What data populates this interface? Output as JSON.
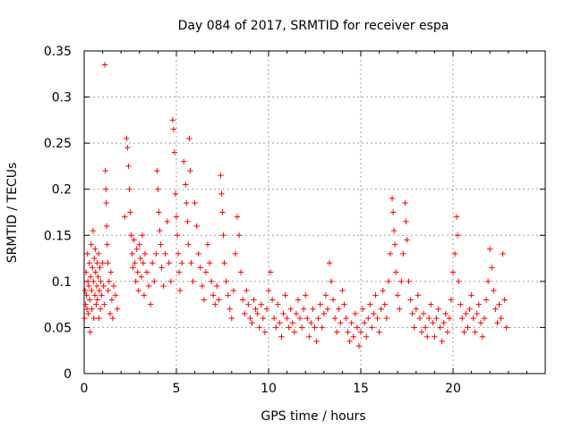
{
  "chart_data": {
    "type": "scatter",
    "title": "Day 084 of 2017, SRMTID for receiver espa",
    "xlabel": "GPS time / hours",
    "ylabel": "SRMTID / TECUs",
    "xlim": [
      0,
      25
    ],
    "ylim": [
      0,
      0.35
    ],
    "grid": true,
    "marker": "+",
    "color": "#ff0000",
    "x_ticks": [
      0,
      5,
      10,
      15,
      20
    ],
    "x_tick_labels": [
      "0",
      "5",
      "10",
      "15",
      "20"
    ],
    "y_ticks": [
      0,
      0.05,
      0.1,
      0.15,
      0.2,
      0.25,
      0.3,
      0.35
    ],
    "y_tick_labels": [
      "0",
      "0.05",
      "0.1",
      "0.15",
      "0.2",
      "0.25",
      "0.3",
      "0.35"
    ],
    "series": [
      {
        "name": "SRMTID",
        "points": [
          [
            0.02,
            0.06
          ],
          [
            0.05,
            0.09
          ],
          [
            0.08,
            0.075
          ],
          [
            0.1,
            0.11
          ],
          [
            0.12,
            0.085
          ],
          [
            0.15,
            0.07
          ],
          [
            0.18,
            0.13
          ],
          [
            0.2,
            0.1
          ],
          [
            0.22,
            0.065
          ],
          [
            0.25,
            0.095
          ],
          [
            0.28,
            0.12
          ],
          [
            0.3,
            0.08
          ],
          [
            0.32,
            0.045
          ],
          [
            0.35,
            0.105
          ],
          [
            0.38,
            0.14
          ],
          [
            0.4,
            0.09
          ],
          [
            0.42,
            0.07
          ],
          [
            0.45,
            0.115
          ],
          [
            0.48,
            0.155
          ],
          [
            0.5,
            0.1
          ],
          [
            0.52,
            0.06
          ],
          [
            0.55,
            0.125
          ],
          [
            0.58,
            0.085
          ],
          [
            0.6,
            0.135
          ],
          [
            0.62,
            0.11
          ],
          [
            0.65,
            0.075
          ],
          [
            0.68,
            0.095
          ],
          [
            0.7,
            0.12
          ],
          [
            0.72,
            0.08
          ],
          [
            0.75,
            0.105
          ],
          [
            0.78,
            0.13
          ],
          [
            0.8,
            0.06
          ],
          [
            0.82,
            0.09
          ],
          [
            0.85,
            0.115
          ],
          [
            0.88,
            0.07
          ],
          [
            0.9,
            0.1
          ],
          [
            0.95,
            0.085
          ],
          [
            1.0,
            0.12
          ],
          [
            1.05,
            0.095
          ],
          [
            1.1,
            0.075
          ],
          [
            1.12,
            0.335
          ],
          [
            1.15,
            0.22
          ],
          [
            1.18,
            0.2
          ],
          [
            1.2,
            0.185
          ],
          [
            1.22,
            0.16
          ],
          [
            1.25,
            0.14
          ],
          [
            1.28,
            0.12
          ],
          [
            1.3,
            0.09
          ],
          [
            1.35,
            0.1
          ],
          [
            1.4,
            0.065
          ],
          [
            1.45,
            0.11
          ],
          [
            1.5,
            0.08
          ],
          [
            1.55,
            0.06
          ],
          [
            1.6,
            0.095
          ],
          [
            1.7,
            0.085
          ],
          [
            1.8,
            0.07
          ],
          [
            2.2,
            0.17
          ],
          [
            2.3,
            0.255
          ],
          [
            2.35,
            0.245
          ],
          [
            2.4,
            0.225
          ],
          [
            2.45,
            0.2
          ],
          [
            2.5,
            0.175
          ],
          [
            2.55,
            0.15
          ],
          [
            2.6,
            0.13
          ],
          [
            2.65,
            0.115
          ],
          [
            2.7,
            0.145
          ],
          [
            2.75,
            0.12
          ],
          [
            2.8,
            0.1
          ],
          [
            2.85,
            0.135
          ],
          [
            2.9,
            0.11
          ],
          [
            2.95,
            0.09
          ],
          [
            3.0,
            0.14
          ],
          [
            3.05,
            0.125
          ],
          [
            3.1,
            0.105
          ],
          [
            3.15,
            0.15
          ],
          [
            3.2,
            0.12
          ],
          [
            3.25,
            0.085
          ],
          [
            3.3,
            0.13
          ],
          [
            3.4,
            0.11
          ],
          [
            3.5,
            0.095
          ],
          [
            3.6,
            0.075
          ],
          [
            3.7,
            0.12
          ],
          [
            3.8,
            0.1
          ],
          [
            3.9,
            0.13
          ],
          [
            3.95,
            0.22
          ],
          [
            4.0,
            0.2
          ],
          [
            4.05,
            0.175
          ],
          [
            4.1,
            0.155
          ],
          [
            4.15,
            0.14
          ],
          [
            4.2,
            0.115
          ],
          [
            4.3,
            0.095
          ],
          [
            4.4,
            0.13
          ],
          [
            4.5,
            0.165
          ],
          [
            4.6,
            0.12
          ],
          [
            4.7,
            0.1
          ],
          [
            4.8,
            0.275
          ],
          [
            4.85,
            0.265
          ],
          [
            4.9,
            0.24
          ],
          [
            4.95,
            0.195
          ],
          [
            5.0,
            0.17
          ],
          [
            5.05,
            0.15
          ],
          [
            5.1,
            0.13
          ],
          [
            5.15,
            0.11
          ],
          [
            5.2,
            0.09
          ],
          [
            5.3,
            0.12
          ],
          [
            5.4,
            0.23
          ],
          [
            5.5,
            0.205
          ],
          [
            5.55,
            0.185
          ],
          [
            5.6,
            0.165
          ],
          [
            5.65,
            0.14
          ],
          [
            5.7,
            0.255
          ],
          [
            5.75,
            0.22
          ],
          [
            5.8,
            0.12
          ],
          [
            5.9,
            0.1
          ],
          [
            6.0,
            0.185
          ],
          [
            6.1,
            0.16
          ],
          [
            6.2,
            0.13
          ],
          [
            6.3,
            0.115
          ],
          [
            6.4,
            0.095
          ],
          [
            6.5,
            0.08
          ],
          [
            6.6,
            0.11
          ],
          [
            6.7,
            0.14
          ],
          [
            6.8,
            0.12
          ],
          [
            6.9,
            0.1
          ],
          [
            7.0,
            0.085
          ],
          [
            7.1,
            0.075
          ],
          [
            7.2,
            0.095
          ],
          [
            7.3,
            0.08
          ],
          [
            7.4,
            0.215
          ],
          [
            7.45,
            0.195
          ],
          [
            7.5,
            0.175
          ],
          [
            7.55,
            0.15
          ],
          [
            7.6,
            0.12
          ],
          [
            7.7,
            0.1
          ],
          [
            7.8,
            0.085
          ],
          [
            7.9,
            0.07
          ],
          [
            8.0,
            0.06
          ],
          [
            8.1,
            0.09
          ],
          [
            8.2,
            0.13
          ],
          [
            8.3,
            0.17
          ],
          [
            8.4,
            0.15
          ],
          [
            8.5,
            0.11
          ],
          [
            8.6,
            0.08
          ],
          [
            8.7,
            0.065
          ],
          [
            8.8,
            0.09
          ],
          [
            8.9,
            0.075
          ],
          [
            9.0,
            0.06
          ],
          [
            9.1,
            0.055
          ],
          [
            9.2,
            0.08
          ],
          [
            9.3,
            0.07
          ],
          [
            9.4,
            0.065
          ],
          [
            9.5,
            0.05
          ],
          [
            9.6,
            0.075
          ],
          [
            9.7,
            0.06
          ],
          [
            9.8,
            0.045
          ],
          [
            9.9,
            0.07
          ],
          [
            10.0,
            0.09
          ],
          [
            10.1,
            0.11
          ],
          [
            10.2,
            0.08
          ],
          [
            10.3,
            0.06
          ],
          [
            10.4,
            0.05
          ],
          [
            10.5,
            0.075
          ],
          [
            10.6,
            0.055
          ],
          [
            10.7,
            0.04
          ],
          [
            10.8,
            0.065
          ],
          [
            10.9,
            0.085
          ],
          [
            11.0,
            0.06
          ],
          [
            11.1,
            0.05
          ],
          [
            11.2,
            0.07
          ],
          [
            11.3,
            0.055
          ],
          [
            11.4,
            0.045
          ],
          [
            11.5,
            0.065
          ],
          [
            11.6,
            0.08
          ],
          [
            11.7,
            0.06
          ],
          [
            11.8,
            0.05
          ],
          [
            11.9,
            0.07
          ],
          [
            12.0,
            0.085
          ],
          [
            12.1,
            0.06
          ],
          [
            12.2,
            0.04
          ],
          [
            12.3,
            0.055
          ],
          [
            12.4,
            0.07
          ],
          [
            12.5,
            0.05
          ],
          [
            12.6,
            0.035
          ],
          [
            12.7,
            0.06
          ],
          [
            12.8,
            0.075
          ],
          [
            12.9,
            0.05
          ],
          [
            13.0,
            0.065
          ],
          [
            13.1,
            0.085
          ],
          [
            13.2,
            0.07
          ],
          [
            13.3,
            0.12
          ],
          [
            13.4,
            0.1
          ],
          [
            13.5,
            0.08
          ],
          [
            13.6,
            0.06
          ],
          [
            13.7,
            0.045
          ],
          [
            13.8,
            0.07
          ],
          [
            13.9,
            0.055
          ],
          [
            14.0,
            0.09
          ],
          [
            14.1,
            0.075
          ],
          [
            14.2,
            0.06
          ],
          [
            14.3,
            0.045
          ],
          [
            14.4,
            0.035
          ],
          [
            14.5,
            0.055
          ],
          [
            14.6,
            0.04
          ],
          [
            14.7,
            0.065
          ],
          [
            14.8,
            0.05
          ],
          [
            14.9,
            0.03
          ],
          [
            15.0,
            0.045
          ],
          [
            15.1,
            0.07
          ],
          [
            15.2,
            0.055
          ],
          [
            15.3,
            0.04
          ],
          [
            15.4,
            0.06
          ],
          [
            15.5,
            0.075
          ],
          [
            15.6,
            0.05
          ],
          [
            15.7,
            0.065
          ],
          [
            15.8,
            0.085
          ],
          [
            15.9,
            0.06
          ],
          [
            16.0,
            0.045
          ],
          [
            16.1,
            0.07
          ],
          [
            16.2,
            0.09
          ],
          [
            16.3,
            0.075
          ],
          [
            16.4,
            0.06
          ],
          [
            16.5,
            0.1
          ],
          [
            16.6,
            0.13
          ],
          [
            16.7,
            0.19
          ],
          [
            16.75,
            0.175
          ],
          [
            16.8,
            0.155
          ],
          [
            16.85,
            0.14
          ],
          [
            16.9,
            0.11
          ],
          [
            17.0,
            0.085
          ],
          [
            17.1,
            0.07
          ],
          [
            17.2,
            0.1
          ],
          [
            17.3,
            0.13
          ],
          [
            17.4,
            0.185
          ],
          [
            17.45,
            0.165
          ],
          [
            17.5,
            0.145
          ],
          [
            17.6,
            0.1
          ],
          [
            17.7,
            0.08
          ],
          [
            17.8,
            0.065
          ],
          [
            17.9,
            0.05
          ],
          [
            18.0,
            0.07
          ],
          [
            18.1,
            0.085
          ],
          [
            18.2,
            0.06
          ],
          [
            18.3,
            0.045
          ],
          [
            18.4,
            0.065
          ],
          [
            18.5,
            0.05
          ],
          [
            18.6,
            0.04
          ],
          [
            18.7,
            0.06
          ],
          [
            18.8,
            0.075
          ],
          [
            18.9,
            0.055
          ],
          [
            19.0,
            0.04
          ],
          [
            19.1,
            0.06
          ],
          [
            19.2,
            0.07
          ],
          [
            19.3,
            0.05
          ],
          [
            19.4,
            0.035
          ],
          [
            19.5,
            0.055
          ],
          [
            19.6,
            0.065
          ],
          [
            19.7,
            0.045
          ],
          [
            19.8,
            0.06
          ],
          [
            19.9,
            0.08
          ],
          [
            20.0,
            0.11
          ],
          [
            20.1,
            0.13
          ],
          [
            20.2,
            0.17
          ],
          [
            20.25,
            0.15
          ],
          [
            20.3,
            0.1
          ],
          [
            20.4,
            0.075
          ],
          [
            20.5,
            0.06
          ],
          [
            20.6,
            0.045
          ],
          [
            20.7,
            0.065
          ],
          [
            20.8,
            0.05
          ],
          [
            20.9,
            0.07
          ],
          [
            21.0,
            0.085
          ],
          [
            21.1,
            0.06
          ],
          [
            21.2,
            0.045
          ],
          [
            21.3,
            0.065
          ],
          [
            21.4,
            0.075
          ],
          [
            21.5,
            0.055
          ],
          [
            21.6,
            0.04
          ],
          [
            21.7,
            0.06
          ],
          [
            21.8,
            0.08
          ],
          [
            21.9,
            0.1
          ],
          [
            22.0,
            0.135
          ],
          [
            22.1,
            0.115
          ],
          [
            22.2,
            0.09
          ],
          [
            22.3,
            0.07
          ],
          [
            22.4,
            0.055
          ],
          [
            22.5,
            0.075
          ],
          [
            22.6,
            0.06
          ],
          [
            22.7,
            0.13
          ],
          [
            22.8,
            0.08
          ],
          [
            22.9,
            0.05
          ]
        ]
      }
    ]
  }
}
